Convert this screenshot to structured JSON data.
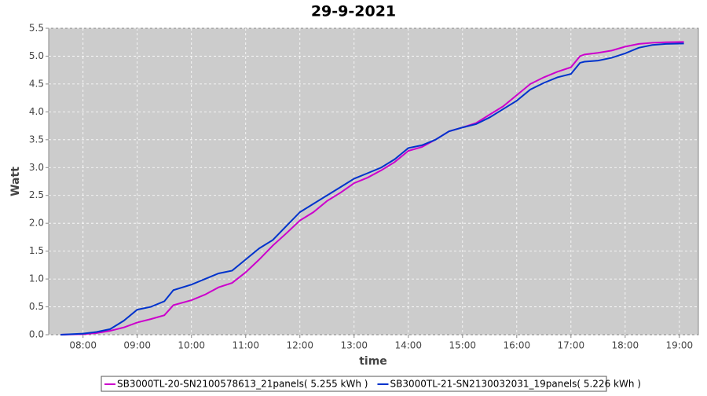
{
  "chart_data": {
    "type": "line",
    "title": "29-9-2021",
    "x_label": "time",
    "y_label": "Watt",
    "x": [
      "07:35",
      "08:00",
      "08:15",
      "08:30",
      "08:45",
      "09:00",
      "09:15",
      "09:30",
      "09:40",
      "10:00",
      "10:15",
      "10:30",
      "10:45",
      "11:00",
      "11:15",
      "11:30",
      "11:45",
      "12:00",
      "12:15",
      "12:30",
      "12:45",
      "13:00",
      "13:15",
      "13:30",
      "13:45",
      "14:00",
      "14:15",
      "14:30",
      "14:45",
      "15:00",
      "15:15",
      "15:30",
      "15:45",
      "16:00",
      "16:15",
      "16:30",
      "16:45",
      "17:00",
      "17:10",
      "17:15",
      "17:30",
      "17:45",
      "18:00",
      "18:15",
      "18:30",
      "18:45",
      "19:05"
    ],
    "series": [
      {
        "name": "SB3000TL-20-SN2100578613_21panels( 5.255 kWh )",
        "color": "#cc00cc",
        "values": [
          0,
          0.01,
          0.03,
          0.07,
          0.13,
          0.22,
          0.28,
          0.35,
          0.53,
          0.62,
          0.72,
          0.85,
          0.93,
          1.12,
          1.35,
          1.6,
          1.82,
          2.05,
          2.2,
          2.4,
          2.55,
          2.72,
          2.82,
          2.95,
          3.1,
          3.3,
          3.37,
          3.5,
          3.65,
          3.72,
          3.8,
          3.95,
          4.1,
          4.3,
          4.5,
          4.62,
          4.72,
          4.8,
          5.0,
          5.03,
          5.06,
          5.1,
          5.17,
          5.22,
          5.24,
          5.25,
          5.255
        ]
      },
      {
        "name": "SB3000TL-21-SN2130032031_19panels( 5.226 kWh )",
        "color": "#0033cc",
        "values": [
          0,
          0.02,
          0.05,
          0.1,
          0.25,
          0.45,
          0.5,
          0.6,
          0.8,
          0.9,
          1.0,
          1.1,
          1.15,
          1.35,
          1.55,
          1.7,
          1.95,
          2.2,
          2.35,
          2.5,
          2.65,
          2.8,
          2.9,
          3.0,
          3.15,
          3.35,
          3.4,
          3.5,
          3.65,
          3.72,
          3.78,
          3.9,
          4.05,
          4.2,
          4.4,
          4.52,
          4.62,
          4.68,
          4.88,
          4.9,
          4.92,
          4.97,
          5.05,
          5.15,
          5.2,
          5.22,
          5.226
        ]
      }
    ],
    "xlim": [
      "07:22",
      "19:21"
    ],
    "xticks": [
      "08:00",
      "09:00",
      "10:00",
      "11:00",
      "12:00",
      "13:00",
      "14:00",
      "15:00",
      "16:00",
      "17:00",
      "18:00",
      "19:00"
    ],
    "ylim": [
      0,
      5.5
    ],
    "yticks": [
      {
        "value": 0,
        "label": "0.0"
      },
      0.5,
      {
        "value": 1,
        "label": "1.0"
      },
      1.5,
      {
        "value": 2,
        "label": "2.0"
      },
      2.5,
      {
        "value": 3,
        "label": "3.0"
      },
      3.5,
      {
        "value": 4,
        "label": "4.0"
      },
      4.5,
      {
        "value": 5,
        "label": "5.0"
      },
      5.5
    ],
    "grid": true,
    "legend": "bottom"
  }
}
